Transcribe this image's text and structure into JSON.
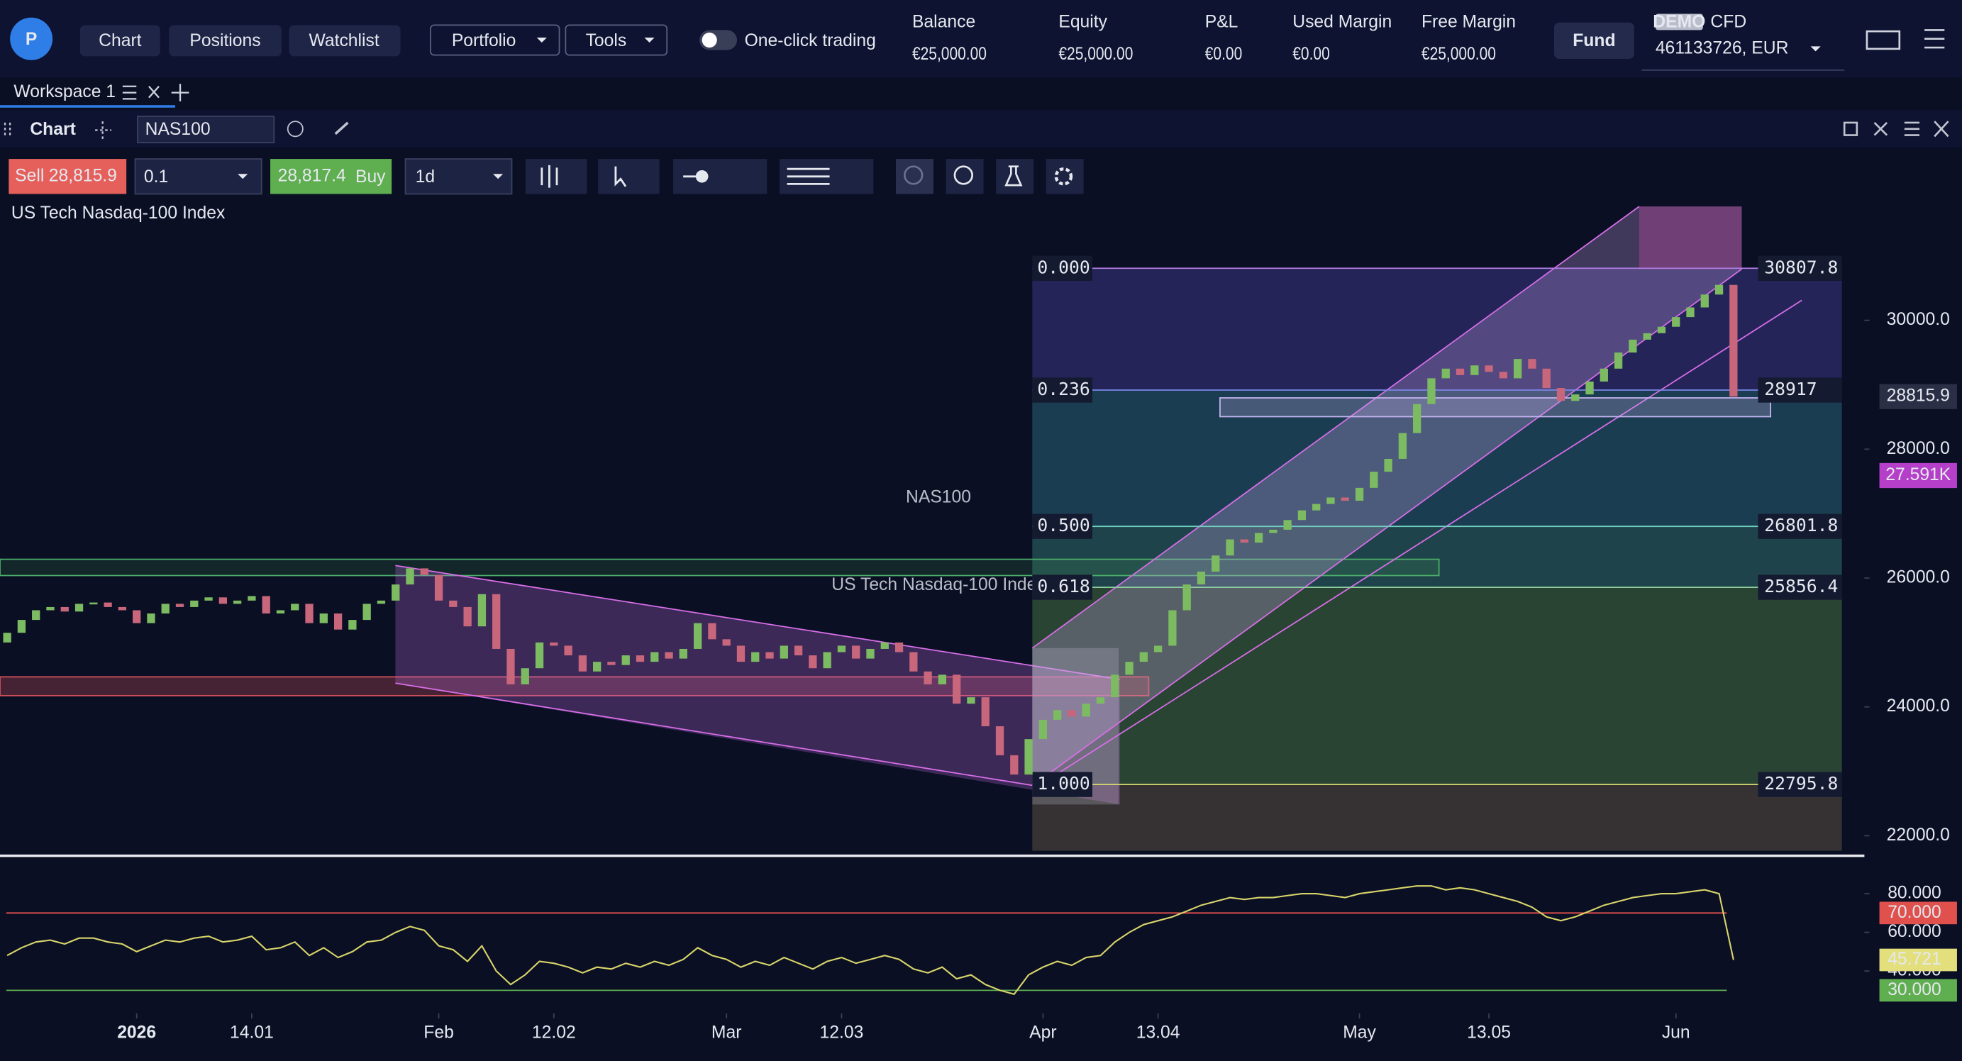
{
  "header": {
    "nav": [
      "Chart",
      "Positions",
      "Watchlist"
    ],
    "menus": [
      "Portfolio",
      "Tools"
    ],
    "toggle": "One-click trading",
    "stats": [
      {
        "label": "Balance",
        "value": "€25,000.00"
      },
      {
        "label": "Equity",
        "value": "€25,000.00"
      },
      {
        "label": "P&L",
        "value": "€0.00"
      },
      {
        "label": "Used Margin",
        "value": "€0.00"
      },
      {
        "label": "Free Margin",
        "value": "€25,000.00"
      }
    ],
    "fund": "Fund",
    "account_badge": "DEMO",
    "account_type": "CFD",
    "account": "461133726, EUR"
  },
  "workspace": {
    "tab": "Workspace 1"
  },
  "panel": {
    "title": "Chart",
    "symbol": "NAS100"
  },
  "toolbar": {
    "sell_label": "Sell",
    "sell_price": "28,815.9",
    "quantity": "0.1",
    "buy_price": "28,817.4",
    "buy_label": "Buy",
    "interval": "1d"
  },
  "chart_data": {
    "type": "candlestick",
    "title": "US Tech Nasdaq-100 Index",
    "watermark": "NAS100",
    "watermark_subtitle": "US Tech Nasdaq-100 Index",
    "up_color": "#7dbb63",
    "down_color": "#c8667c",
    "open": [
      25000,
      25150,
      25350,
      25500,
      25550,
      25480,
      25600,
      25620,
      25550,
      25500,
      25300,
      25450,
      25600,
      25550,
      25650,
      25700,
      25600,
      25650,
      25720,
      25450,
      25500,
      25600,
      25300,
      25450,
      25200,
      25350,
      25600,
      25650,
      25900,
      26150,
      26050,
      25650,
      25550,
      25250,
      25750,
      24900,
      24350,
      24600,
      25000,
      24950,
      24800,
      24550,
      24700,
      24650,
      24800,
      24700,
      24850,
      24750,
      24900,
      25300,
      25050,
      24950,
      24700,
      24850,
      24750,
      24950,
      24800,
      24600,
      24850,
      24950,
      24750,
      24900,
      25000,
      24850,
      24550,
      24350,
      24500,
      24050,
      24150,
      23700,
      23250,
      22950,
      23500,
      23800,
      23950,
      23850,
      24050,
      24150,
      24500,
      24700,
      24850,
      24950,
      25500,
      25900,
      26100,
      26350,
      26600,
      26550,
      26700,
      26750,
      26900,
      27050,
      27150,
      27250,
      27200,
      27400,
      27650,
      27850,
      28250,
      28700,
      29100,
      29250,
      29150,
      29300,
      29200,
      29100,
      29400,
      29250,
      28950,
      28750,
      28850,
      29050,
      29250,
      29500,
      29700,
      29800,
      29900,
      30050,
      30200,
      30400,
      30550
    ],
    "close": [
      25150,
      25350,
      25500,
      25550,
      25480,
      25600,
      25620,
      25550,
      25500,
      25300,
      25450,
      25600,
      25550,
      25650,
      25700,
      25600,
      25650,
      25720,
      25450,
      25500,
      25600,
      25300,
      25450,
      25200,
      25350,
      25600,
      25650,
      25900,
      26150,
      26050,
      25650,
      25550,
      25250,
      25750,
      24900,
      24350,
      24600,
      25000,
      24950,
      24800,
      24550,
      24700,
      24650,
      24800,
      24700,
      24850,
      24750,
      24900,
      25300,
      25050,
      24950,
      24700,
      24850,
      24750,
      24950,
      24800,
      24600,
      24850,
      24950,
      24750,
      24900,
      25000,
      24850,
      24550,
      24350,
      24500,
      24050,
      24150,
      23700,
      23250,
      22950,
      23500,
      23800,
      23950,
      23850,
      24050,
      24150,
      24500,
      24700,
      24850,
      24950,
      25500,
      25900,
      26100,
      26350,
      26600,
      26550,
      26700,
      26750,
      26900,
      27050,
      27150,
      27250,
      27200,
      27400,
      27650,
      27850,
      28250,
      28700,
      29100,
      29250,
      29150,
      29300,
      29200,
      29100,
      29400,
      29250,
      28950,
      28750,
      28850,
      29050,
      29250,
      29500,
      29700,
      29800,
      29900,
      30050,
      30200,
      30400,
      30550,
      28815.9
    ],
    "xlim": [
      -0.5,
      129.1
    ],
    "xticks": [
      {
        "value": 9,
        "label": "2026"
      },
      {
        "value": 17,
        "label": "14.01"
      },
      {
        "value": 30,
        "label": "Feb"
      },
      {
        "value": 38,
        "label": "12.02"
      },
      {
        "value": 50,
        "label": "Mar"
      },
      {
        "value": 58,
        "label": "12.03"
      },
      {
        "value": 72,
        "label": "Apr"
      },
      {
        "value": 80,
        "label": "13.04"
      },
      {
        "value": 94,
        "label": "May"
      },
      {
        "value": 103,
        "label": "13.05"
      },
      {
        "value": 116,
        "label": "Jun"
      }
    ],
    "ylim": [
      21767,
      31767
    ],
    "yticks": [
      {
        "value": 22000,
        "label": "22000.0"
      },
      {
        "value": 24000,
        "label": "24000.0"
      },
      {
        "value": 26000,
        "label": "26000.0"
      },
      {
        "value": 28000,
        "label": "28000.0"
      },
      {
        "value": 30000,
        "label": "30000.0"
      }
    ],
    "price_badges": [
      {
        "value": 28815.9,
        "label": "28815.9",
        "color": "#2a2f45"
      },
      {
        "value": 27591,
        "label": "27.591K",
        "color": "#b53fc9"
      }
    ],
    "fibonacci": [
      {
        "level": "0.000",
        "price": 30807.8,
        "color": "#b07be0"
      },
      {
        "level": "0.236",
        "price": 28917.0,
        "color": "#7b86e8"
      },
      {
        "level": "0.500",
        "price": 26801.8,
        "color": "#6fd0c0"
      },
      {
        "level": "0.618",
        "price": 25856.4,
        "color": "#8fd0a0"
      },
      {
        "level": "1.000",
        "price": 22795.8,
        "color": "#d4d870"
      }
    ],
    "rsi": {
      "ylim": [
        20,
        97
      ],
      "yticks": [
        {
          "value": 80,
          "label": "80.000"
        },
        {
          "value": 60,
          "label": "60.000"
        },
        {
          "value": 40,
          "label": "40.000"
        }
      ],
      "bands": [
        {
          "value": 70,
          "label": "70.000",
          "color": "#e0504c"
        },
        {
          "value": 30,
          "label": "30.000",
          "color": "#5fae4f"
        }
      ],
      "last": {
        "value": 45.721,
        "label": "45.721",
        "color": "#e2df7c"
      },
      "line_color": "#d8d46a",
      "values": [
        48,
        52,
        55,
        56,
        54,
        57,
        57,
        55,
        54,
        50,
        53,
        56,
        55,
        57,
        58,
        55,
        56,
        58,
        51,
        52,
        55,
        48,
        52,
        47,
        50,
        55,
        56,
        60,
        63,
        61,
        53,
        51,
        45,
        53,
        40,
        33,
        38,
        45,
        44,
        42,
        39,
        42,
        41,
        44,
        42,
        45,
        43,
        46,
        52,
        48,
        46,
        42,
        45,
        43,
        47,
        44,
        41,
        45,
        47,
        44,
        46,
        48,
        46,
        41,
        39,
        42,
        36,
        38,
        33,
        30,
        28,
        38,
        42,
        45,
        43,
        47,
        48,
        55,
        60,
        64,
        66,
        68,
        71,
        74,
        76,
        78,
        77,
        78,
        78,
        79,
        80,
        80,
        79,
        78,
        80,
        81,
        82,
        83,
        84,
        84,
        82,
        83,
        82,
        80,
        78,
        76,
        73,
        68,
        66,
        68,
        71,
        74,
        76,
        78,
        79,
        80,
        80,
        81,
        82,
        80,
        45.721
      ]
    }
  }
}
